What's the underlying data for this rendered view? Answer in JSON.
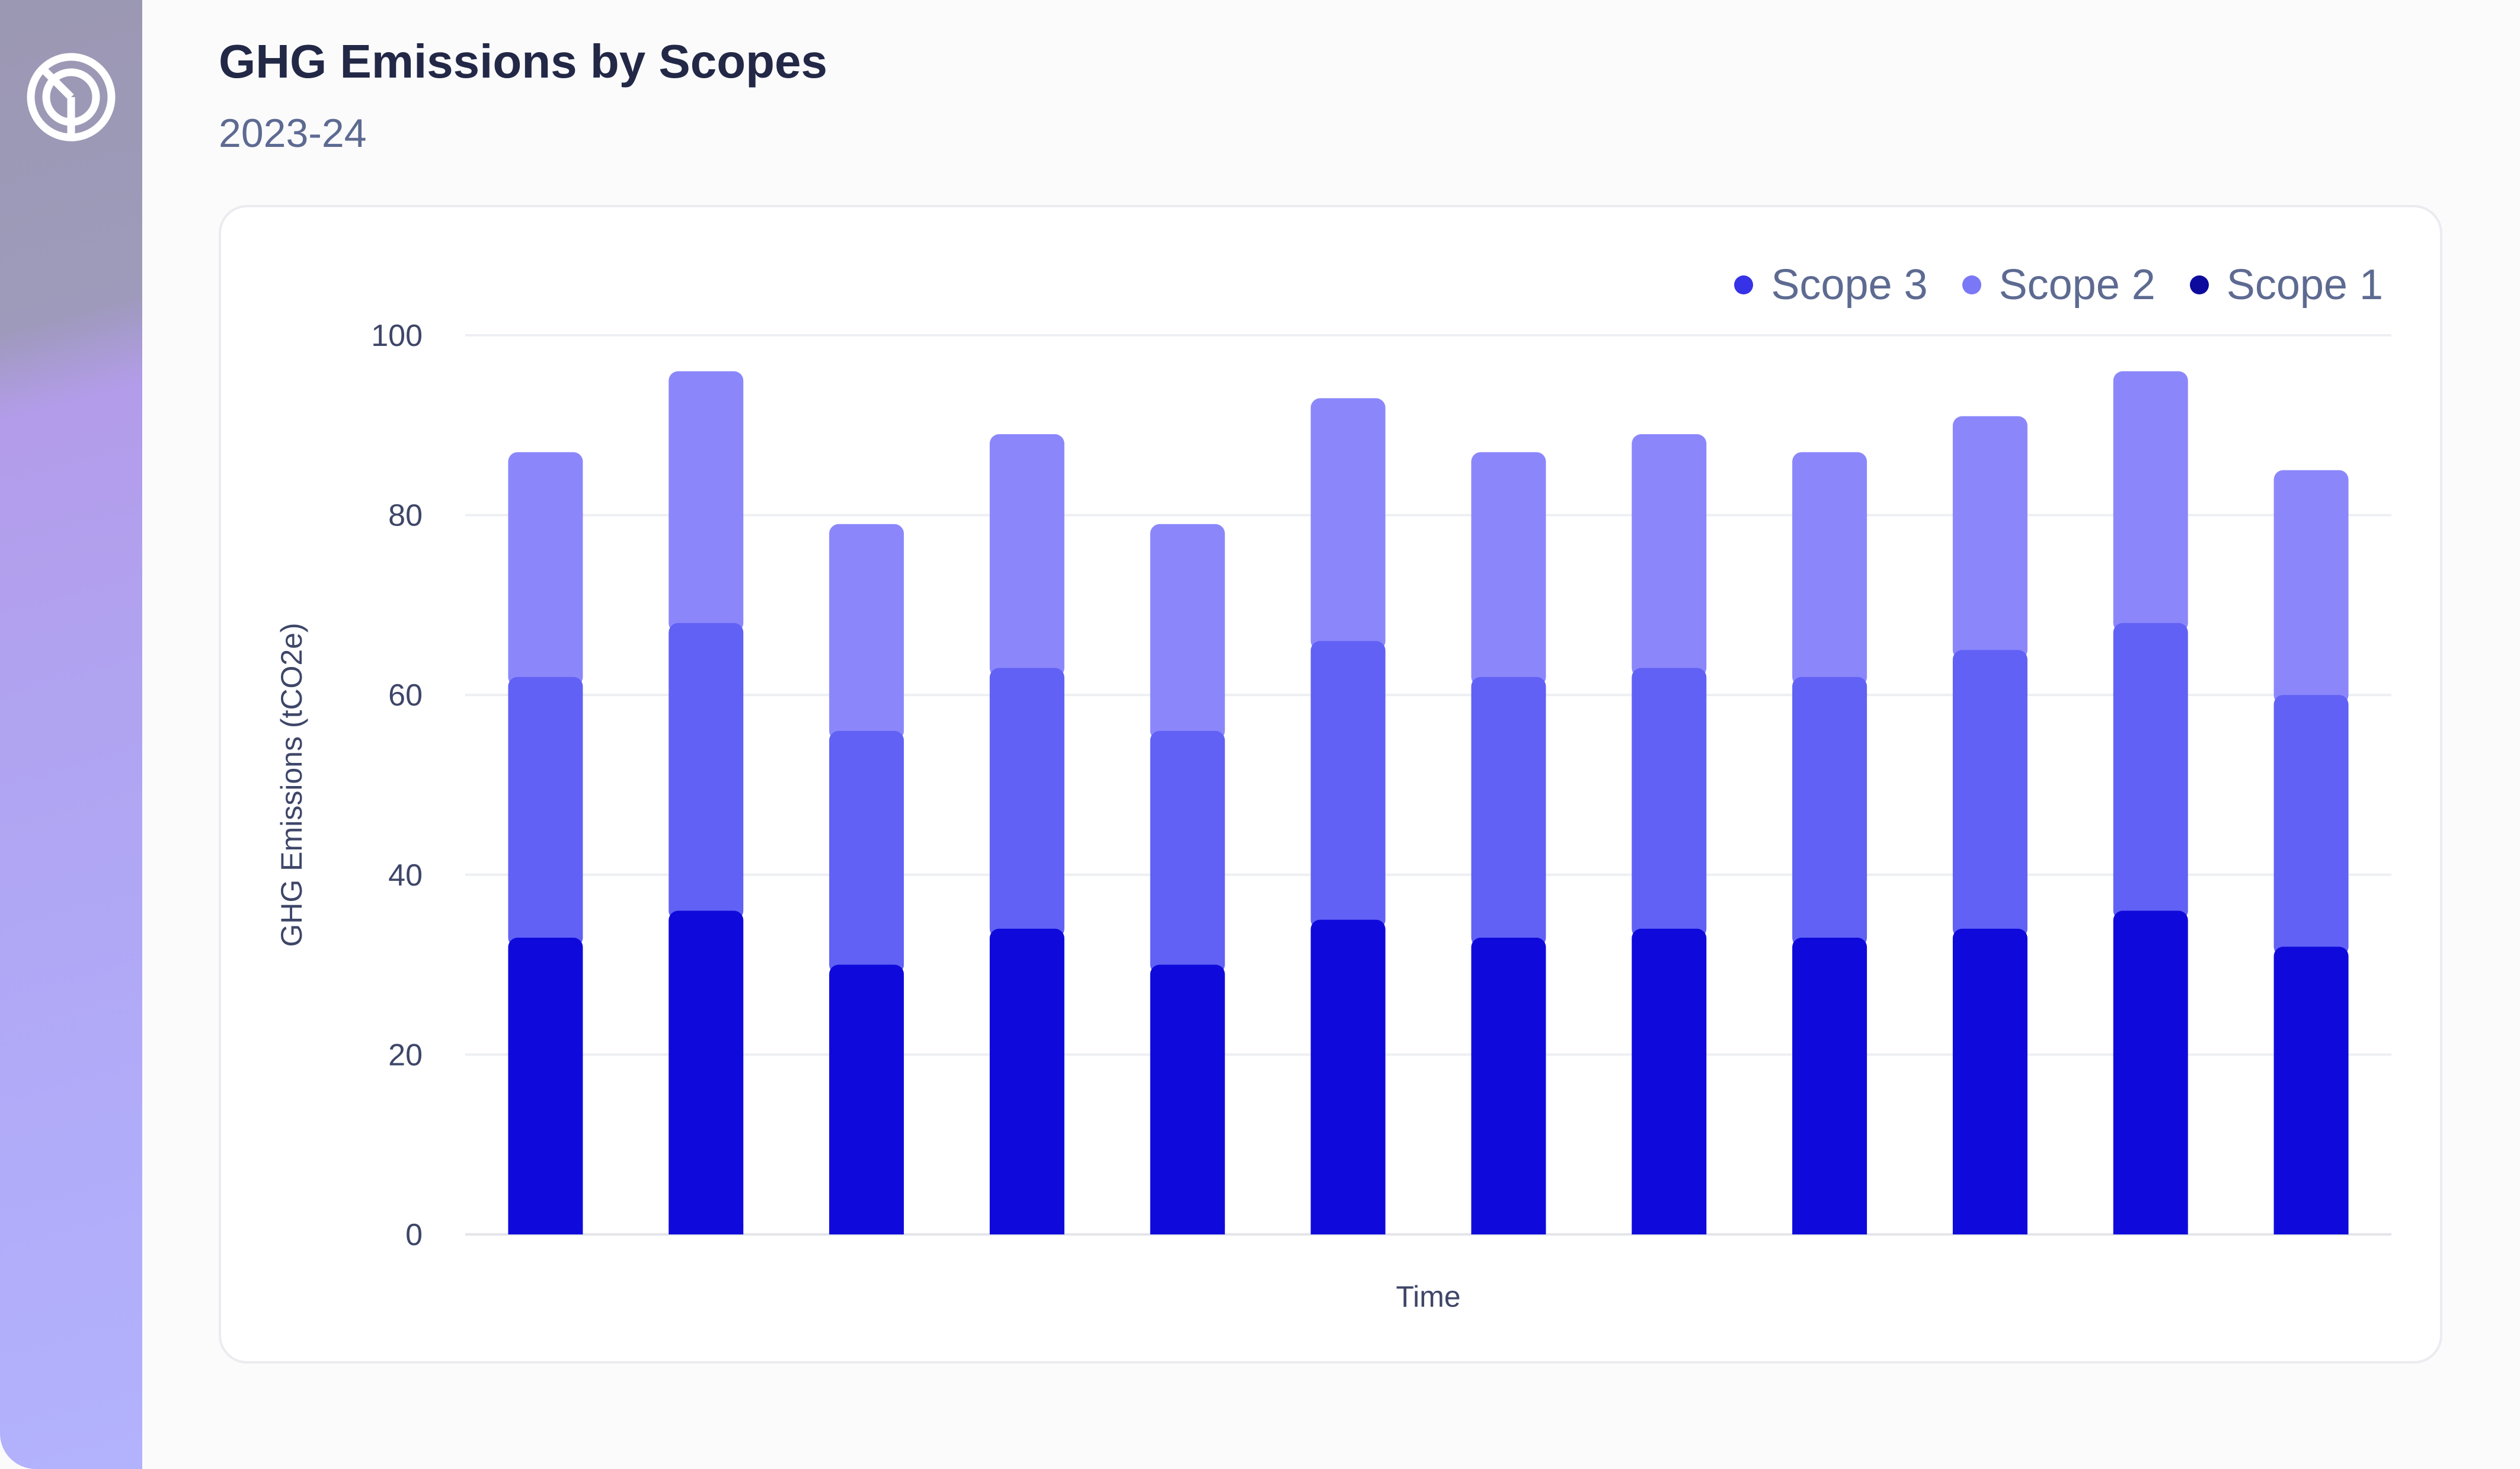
{
  "header": {
    "title": "GHG Emissions by Scopes",
    "subtitle": "2023-24"
  },
  "logo": {
    "icon": "brand-logo-icon"
  },
  "colors": {
    "scope1": "#0f0adb",
    "scope2": "#6161f5",
    "scope3": "#8b87fb",
    "legend_scope3": "#3632e8",
    "legend_scope2": "#7b78f7",
    "legend_scope1": "#0d0a9e",
    "sidebar_start": "#9b98b3",
    "sidebar_end": "#b3b2fc"
  },
  "legend": {
    "items": [
      {
        "label": "Scope 3",
        "key": "legend_scope3"
      },
      {
        "label": "Scope 2",
        "key": "legend_scope2"
      },
      {
        "label": "Scope 1",
        "key": "legend_scope1"
      }
    ]
  },
  "chart_data": {
    "type": "bar",
    "stacked": true,
    "title": "",
    "xlabel": "Time",
    "ylabel": "GHG Emissions (tCO2e)",
    "ylim": [
      0,
      100
    ],
    "yticks": [
      0,
      20,
      40,
      60,
      80,
      100
    ],
    "grid": true,
    "legend_position": "top-right",
    "categories": [
      "",
      "",
      "",
      "",
      "",
      "",
      "",
      "",
      "",
      "",
      "",
      ""
    ],
    "series": [
      {
        "name": "Scope 1",
        "values": [
          33,
          36,
          30,
          34,
          30,
          35,
          33,
          34,
          33,
          34,
          36,
          32
        ]
      },
      {
        "name": "Scope 2",
        "values": [
          29,
          32,
          26,
          29,
          26,
          31,
          29,
          29,
          29,
          31,
          32,
          28
        ]
      },
      {
        "name": "Scope 3",
        "values": [
          25,
          28,
          23,
          26,
          23,
          27,
          25,
          26,
          25,
          26,
          28,
          25
        ]
      }
    ]
  }
}
